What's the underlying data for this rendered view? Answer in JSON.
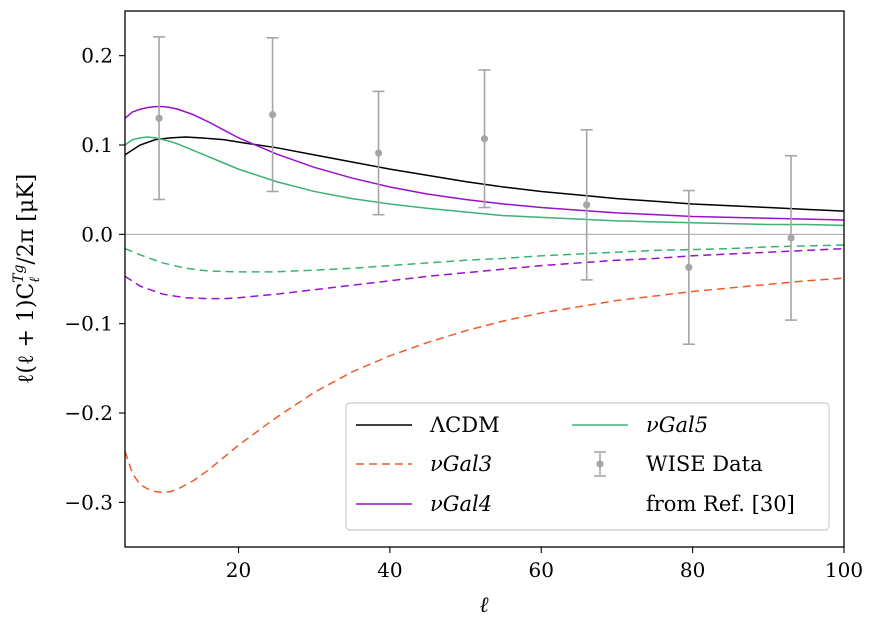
{
  "chart_data": {
    "type": "line",
    "xlabel": "ℓ",
    "ylabel": "ℓ(ℓ + 1)C",
    "ylabel_sub": "ℓ",
    "ylabel_sup": "Tg",
    "ylabel_tail": "/2π [μK]",
    "xlim": [
      5,
      100
    ],
    "ylim": [
      -0.35,
      0.25
    ],
    "xticks": [
      20,
      40,
      60,
      80,
      100
    ],
    "xtick_labels": [
      "20",
      "40",
      "60",
      "80",
      "100"
    ],
    "yticks": [
      0.2,
      0.1,
      0.0,
      -0.1,
      -0.2,
      -0.3
    ],
    "ytick_labels": [
      "0.2",
      "0.1",
      "0.0",
      "−0.1",
      "−0.2",
      "−0.3"
    ],
    "zero_line": true,
    "legend_position": "lower-right",
    "series": [
      {
        "name": "ΛCDM",
        "color": "#000000",
        "style": "solid",
        "x": [
          5,
          7,
          9,
          11,
          13,
          15,
          18,
          21,
          25,
          30,
          35,
          40,
          45,
          50,
          55,
          60,
          65,
          70,
          75,
          80,
          85,
          90,
          95,
          100
        ],
        "y": [
          0.089,
          0.1,
          0.106,
          0.108,
          0.109,
          0.108,
          0.106,
          0.102,
          0.097,
          0.089,
          0.081,
          0.073,
          0.066,
          0.059,
          0.053,
          0.048,
          0.044,
          0.04,
          0.037,
          0.034,
          0.032,
          0.03,
          0.028,
          0.026
        ]
      },
      {
        "name": "νGal3",
        "color": "#f05a28",
        "style": "dashed",
        "x": [
          5,
          6,
          7,
          8,
          9,
          10,
          11,
          12,
          14,
          16,
          18,
          20,
          25,
          30,
          35,
          40,
          45,
          50,
          55,
          60,
          65,
          70,
          75,
          80,
          85,
          90,
          95,
          100
        ],
        "y": [
          -0.243,
          -0.268,
          -0.28,
          -0.285,
          -0.288,
          -0.289,
          -0.288,
          -0.285,
          -0.276,
          -0.264,
          -0.25,
          -0.236,
          -0.205,
          -0.177,
          -0.154,
          -0.136,
          -0.121,
          -0.108,
          -0.097,
          -0.088,
          -0.081,
          -0.074,
          -0.069,
          -0.064,
          -0.06,
          -0.056,
          -0.052,
          -0.049
        ]
      },
      {
        "name": "νGal4",
        "color": "#9a10cc",
        "style": "solid",
        "x": [
          5,
          6,
          7,
          8,
          9,
          10,
          11,
          12,
          14,
          16,
          18,
          20,
          25,
          30,
          35,
          40,
          45,
          50,
          55,
          60,
          65,
          70,
          75,
          80,
          85,
          90,
          95,
          100
        ],
        "y": [
          0.13,
          0.137,
          0.14,
          0.142,
          0.143,
          0.143,
          0.142,
          0.14,
          0.134,
          0.126,
          0.117,
          0.108,
          0.09,
          0.075,
          0.063,
          0.053,
          0.045,
          0.039,
          0.034,
          0.03,
          0.027,
          0.024,
          0.022,
          0.02,
          0.019,
          0.018,
          0.017,
          0.016
        ]
      },
      {
        "name": "νGal5",
        "color": "#3bb273",
        "style": "solid",
        "x": [
          5,
          6,
          7,
          8,
          9,
          10,
          11,
          12,
          14,
          16,
          18,
          20,
          25,
          30,
          35,
          40,
          45,
          50,
          55,
          60,
          65,
          70,
          75,
          80,
          85,
          90,
          95,
          100
        ],
        "y": [
          0.1,
          0.106,
          0.108,
          0.109,
          0.108,
          0.106,
          0.104,
          0.101,
          0.094,
          0.087,
          0.08,
          0.073,
          0.059,
          0.048,
          0.04,
          0.034,
          0.029,
          0.025,
          0.021,
          0.019,
          0.017,
          0.015,
          0.014,
          0.013,
          0.012,
          0.011,
          0.011,
          0.01
        ]
      },
      {
        "name": "νGal3-dashed-green",
        "legend": false,
        "color": "#3bb273",
        "style": "dashed",
        "x": [
          5,
          7,
          10,
          13,
          16,
          20,
          25,
          30,
          35,
          40,
          45,
          50,
          55,
          60,
          65,
          70,
          75,
          80,
          85,
          90,
          95,
          100
        ],
        "y": [
          -0.016,
          -0.023,
          -0.032,
          -0.038,
          -0.041,
          -0.042,
          -0.042,
          -0.04,
          -0.038,
          -0.035,
          -0.032,
          -0.029,
          -0.027,
          -0.024,
          -0.022,
          -0.02,
          -0.018,
          -0.017,
          -0.016,
          -0.014,
          -0.013,
          -0.012
        ]
      },
      {
        "name": "νGal4-dashed-purple",
        "legend": false,
        "color": "#9a10cc",
        "style": "dashed",
        "x": [
          5,
          7,
          10,
          13,
          16,
          18,
          20,
          25,
          30,
          35,
          40,
          45,
          50,
          55,
          60,
          65,
          70,
          75,
          80,
          85,
          90,
          95,
          100
        ],
        "y": [
          -0.047,
          -0.058,
          -0.067,
          -0.071,
          -0.072,
          -0.072,
          -0.071,
          -0.067,
          -0.062,
          -0.057,
          -0.052,
          -0.047,
          -0.043,
          -0.039,
          -0.035,
          -0.032,
          -0.029,
          -0.027,
          -0.024,
          -0.022,
          -0.02,
          -0.018,
          -0.016
        ]
      }
    ],
    "errorbar_series": {
      "name": "WISE Data",
      "name_line2": "from Ref. [30]",
      "color": "#a6a6a6",
      "points": [
        {
          "x": 9.5,
          "y": 0.13,
          "err": 0.091
        },
        {
          "x": 24.5,
          "y": 0.134,
          "err": 0.086
        },
        {
          "x": 38.5,
          "y": 0.091,
          "err": 0.069
        },
        {
          "x": 52.5,
          "y": 0.107,
          "err": 0.077
        },
        {
          "x": 66,
          "y": 0.033,
          "err": 0.084
        },
        {
          "x": 79.5,
          "y": -0.037,
          "err": 0.086
        },
        {
          "x": 93,
          "y": -0.004,
          "err": 0.092
        }
      ]
    },
    "legend_entries": [
      {
        "label": "ΛCDM",
        "color": "#000000",
        "style": "solid"
      },
      {
        "label": "νGal3",
        "color": "#f05a28",
        "style": "dashed"
      },
      {
        "label": "νGal4",
        "color": "#9a10cc",
        "style": "solid"
      },
      {
        "label": "νGal5",
        "color": "#3bb273",
        "style": "solid"
      },
      {
        "label": "WISE Data",
        "color": "#a6a6a6",
        "style": "errorbar"
      },
      {
        "label": "from Ref. [30]",
        "color": "",
        "style": "none"
      }
    ]
  }
}
